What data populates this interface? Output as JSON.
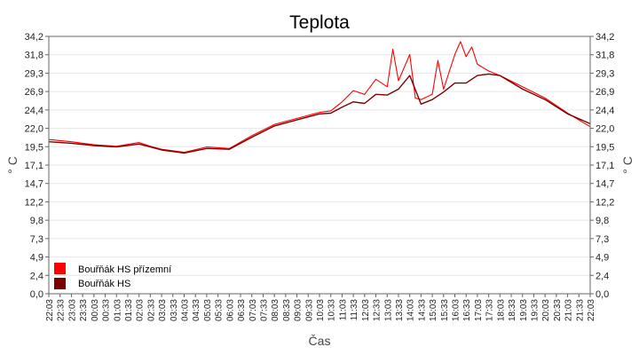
{
  "chart_data": {
    "type": "line",
    "title": "Teplota",
    "xlabel": "Čas",
    "ylabel": "° C",
    "ylim": [
      0,
      34.2
    ],
    "y_ticks": [
      "34,2",
      "31,8",
      "29,3",
      "26,9",
      "24,4",
      "22,0",
      "19,5",
      "17,1",
      "14,7",
      "12,2",
      "9,8",
      "7,3",
      "4,9",
      "2,4",
      "0,0"
    ],
    "x_ticks": [
      "22:03",
      "22:33",
      "23:03",
      "23:33",
      "00:03",
      "00:33",
      "01:03",
      "01:33",
      "02:03",
      "02:33",
      "03:03",
      "03:33",
      "04:03",
      "04:33",
      "05:03",
      "05:33",
      "06:03",
      "06:33",
      "07:03",
      "07:33",
      "08:03",
      "08:33",
      "09:03",
      "09:33",
      "10:03",
      "10:33",
      "11:03",
      "11:33",
      "12:03",
      "12:33",
      "13:03",
      "13:33",
      "14:03",
      "14:33",
      "15:03",
      "15:33",
      "16:03",
      "16:33",
      "17:03",
      "17:33",
      "18:03",
      "18:33",
      "19:03",
      "19:33",
      "20:03",
      "20:33",
      "21:03",
      "21:33",
      "22:03"
    ],
    "grid": true,
    "legend_position": "bottom-left",
    "series": [
      {
        "name": "Bouřňák HS přízemní",
        "color": "#ff0000",
        "x": [
          "22:03",
          "23:03",
          "00:03",
          "01:03",
          "02:03",
          "02:33",
          "03:03",
          "04:03",
          "05:03",
          "06:03",
          "07:03",
          "08:03",
          "09:03",
          "10:03",
          "10:33",
          "11:03",
          "11:33",
          "12:03",
          "12:33",
          "13:03",
          "13:18",
          "13:33",
          "14:03",
          "14:18",
          "14:33",
          "15:03",
          "15:18",
          "15:33",
          "16:03",
          "16:18",
          "16:33",
          "16:48",
          "17:03",
          "17:33",
          "18:03",
          "19:03",
          "20:03",
          "21:03",
          "22:03"
        ],
        "y": [
          20.5,
          20.2,
          19.8,
          19.6,
          20.1,
          19.6,
          19.2,
          18.8,
          19.5,
          19.3,
          21.0,
          22.5,
          23.3,
          24.1,
          24.3,
          25.5,
          27.0,
          26.5,
          28.5,
          27.5,
          32.5,
          28.3,
          31.8,
          26.0,
          25.8,
          26.5,
          31.0,
          27.2,
          31.8,
          33.5,
          31.5,
          32.8,
          30.5,
          29.6,
          29.0,
          27.5,
          26.0,
          24.0,
          22.2
        ]
      },
      {
        "name": "Bouřňák HS",
        "color": "#7b0000",
        "x": [
          "22:03",
          "23:03",
          "00:03",
          "01:03",
          "02:03",
          "02:33",
          "03:03",
          "04:03",
          "05:03",
          "06:03",
          "07:03",
          "08:03",
          "09:03",
          "10:03",
          "10:33",
          "11:03",
          "11:33",
          "12:03",
          "12:33",
          "13:03",
          "13:33",
          "14:03",
          "14:33",
          "15:03",
          "15:33",
          "16:03",
          "16:33",
          "17:03",
          "17:33",
          "18:03",
          "19:03",
          "20:03",
          "21:03",
          "22:03"
        ],
        "y": [
          20.2,
          20.0,
          19.7,
          19.5,
          19.9,
          19.5,
          19.1,
          18.7,
          19.3,
          19.2,
          20.8,
          22.3,
          23.1,
          23.9,
          24.0,
          24.8,
          25.5,
          25.3,
          26.5,
          26.4,
          27.2,
          29.0,
          25.2,
          25.8,
          26.8,
          28.0,
          28.0,
          29.0,
          29.2,
          29.0,
          27.2,
          25.8,
          23.9,
          22.6
        ]
      }
    ]
  }
}
